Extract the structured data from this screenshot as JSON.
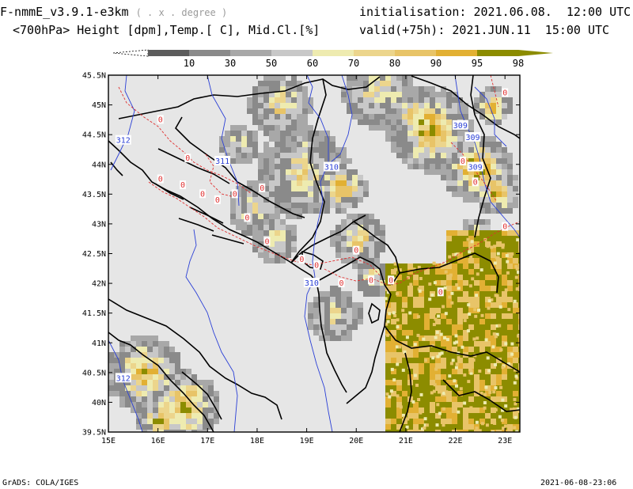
{
  "header": {
    "model": "F-nmmE_v3.9.1-e3km",
    "unit_note": "( . x . degree )",
    "fields": "<700hPa> Height [dpm],Temp.[ C], Mid.Cl.[%]",
    "init": "initialisation: 2021.06.08.  12:00 UTC",
    "valid": "valid(+75h): 2021.JUN.11  15:00 UTC"
  },
  "colorbar": {
    "labels": [
      "10",
      "30",
      "50",
      "60",
      "70",
      "80",
      "90",
      "95",
      "98"
    ],
    "colors": [
      "#5c5c5c",
      "#8a8a8a",
      "#a8a8a8",
      "#c8c8c8",
      "#eeebb0",
      "#ecd58c",
      "#e8c468",
      "#e2b033",
      "#8c8c00"
    ]
  },
  "map": {
    "lat_labels": [
      "45.5N",
      "45N",
      "44.5N",
      "44N",
      "43.5N",
      "43N",
      "42.5N",
      "42N",
      "41.5N",
      "41N",
      "40.5N",
      "40N",
      "39.5N"
    ],
    "lon_labels": [
      "15E",
      "16E",
      "17E",
      "18E",
      "19E",
      "20E",
      "21E",
      "22E",
      "23E"
    ],
    "height_labels": [
      {
        "text": "312",
        "lon": 15.3,
        "lat": 44.4
      },
      {
        "text": "311",
        "lon": 17.3,
        "lat": 44.05
      },
      {
        "text": "310",
        "lon": 19.5,
        "lat": 43.95
      },
      {
        "text": "309",
        "lon": 22.1,
        "lat": 44.65
      },
      {
        "text": "309",
        "lon": 22.35,
        "lat": 44.45
      },
      {
        "text": "309",
        "lon": 22.4,
        "lat": 43.95
      },
      {
        "text": "310",
        "lon": 19.1,
        "lat": 42.0
      },
      {
        "text": "312",
        "lon": 15.3,
        "lat": 40.4
      }
    ],
    "temp_labels": [
      {
        "text": "0",
        "lon": 16.05,
        "lat": 44.75
      },
      {
        "text": "0",
        "lon": 16.6,
        "lat": 44.1
      },
      {
        "text": "0",
        "lon": 16.05,
        "lat": 43.75
      },
      {
        "text": "0",
        "lon": 16.5,
        "lat": 43.65
      },
      {
        "text": "0",
        "lon": 16.9,
        "lat": 43.5
      },
      {
        "text": "0",
        "lon": 17.2,
        "lat": 43.4
      },
      {
        "text": "0",
        "lon": 17.55,
        "lat": 43.5
      },
      {
        "text": "0",
        "lon": 18.1,
        "lat": 43.6
      },
      {
        "text": "0",
        "lon": 17.8,
        "lat": 43.1
      },
      {
        "text": "0",
        "lon": 18.2,
        "lat": 42.7
      },
      {
        "text": "0",
        "lon": 18.9,
        "lat": 42.4
      },
      {
        "text": "0",
        "lon": 19.2,
        "lat": 42.3
      },
      {
        "text": "0",
        "lon": 20.0,
        "lat": 42.55
      },
      {
        "text": "0",
        "lon": 20.3,
        "lat": 42.05
      },
      {
        "text": "0",
        "lon": 19.7,
        "lat": 42.0
      },
      {
        "text": "0",
        "lon": 20.7,
        "lat": 42.05
      },
      {
        "text": "0",
        "lon": 21.7,
        "lat": 41.85
      },
      {
        "text": "0",
        "lon": 22.15,
        "lat": 44.05
      },
      {
        "text": "0",
        "lon": 22.4,
        "lat": 43.7
      },
      {
        "text": "0",
        "lon": 23.0,
        "lat": 42.95
      },
      {
        "text": "0",
        "lon": 23.0,
        "lat": 45.2
      }
    ]
  },
  "footer": {
    "left": "GrADS: COLA/IGES",
    "right": "2021-06-08-23:06"
  }
}
